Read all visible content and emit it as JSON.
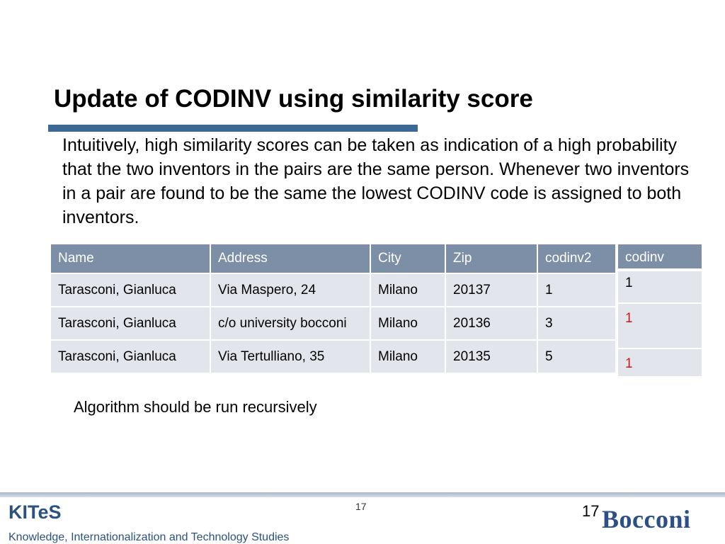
{
  "slide": {
    "title": "Update of CODINV using similarity score",
    "body": "Intuitively, high similarity scores can be taken as indication of a high probability that the two inventors in the pairs are the same person. Whenever two inventors in a pair are found to be the same the lowest CODINV code is assigned to both inventors.",
    "note": "Algorithm should be run recursively"
  },
  "table": {
    "headers": {
      "name": "Name",
      "address": "Address",
      "city": "City",
      "zip": "Zip",
      "codinv2": "codinv2"
    },
    "rows": [
      {
        "name": "Tarasconi, Gianluca",
        "address": "Via Maspero, 24",
        "city": "Milano",
        "zip": "20137",
        "codinv2": "1"
      },
      {
        "name": "Tarasconi, Gianluca",
        "address": "c/o university bocconi",
        "city": "Milano",
        "zip": "20136",
        "codinv2": "3"
      },
      {
        "name": "Tarasconi, Gianluca",
        "address": "Via Tertulliano, 35",
        "city": "Milano",
        "zip": "20135",
        "codinv2": "5"
      }
    ]
  },
  "codinv": {
    "header": "codinv",
    "values": [
      "1",
      "1",
      "1"
    ],
    "colors": [
      "#000000",
      "#d0161f",
      "#d0161f"
    ]
  },
  "footer": {
    "logo": "KITeS",
    "tagline": "Knowledge, Internationalization and Technology Studies",
    "page_small": "17",
    "page_large": "17",
    "university_logo": "Bocconi"
  }
}
